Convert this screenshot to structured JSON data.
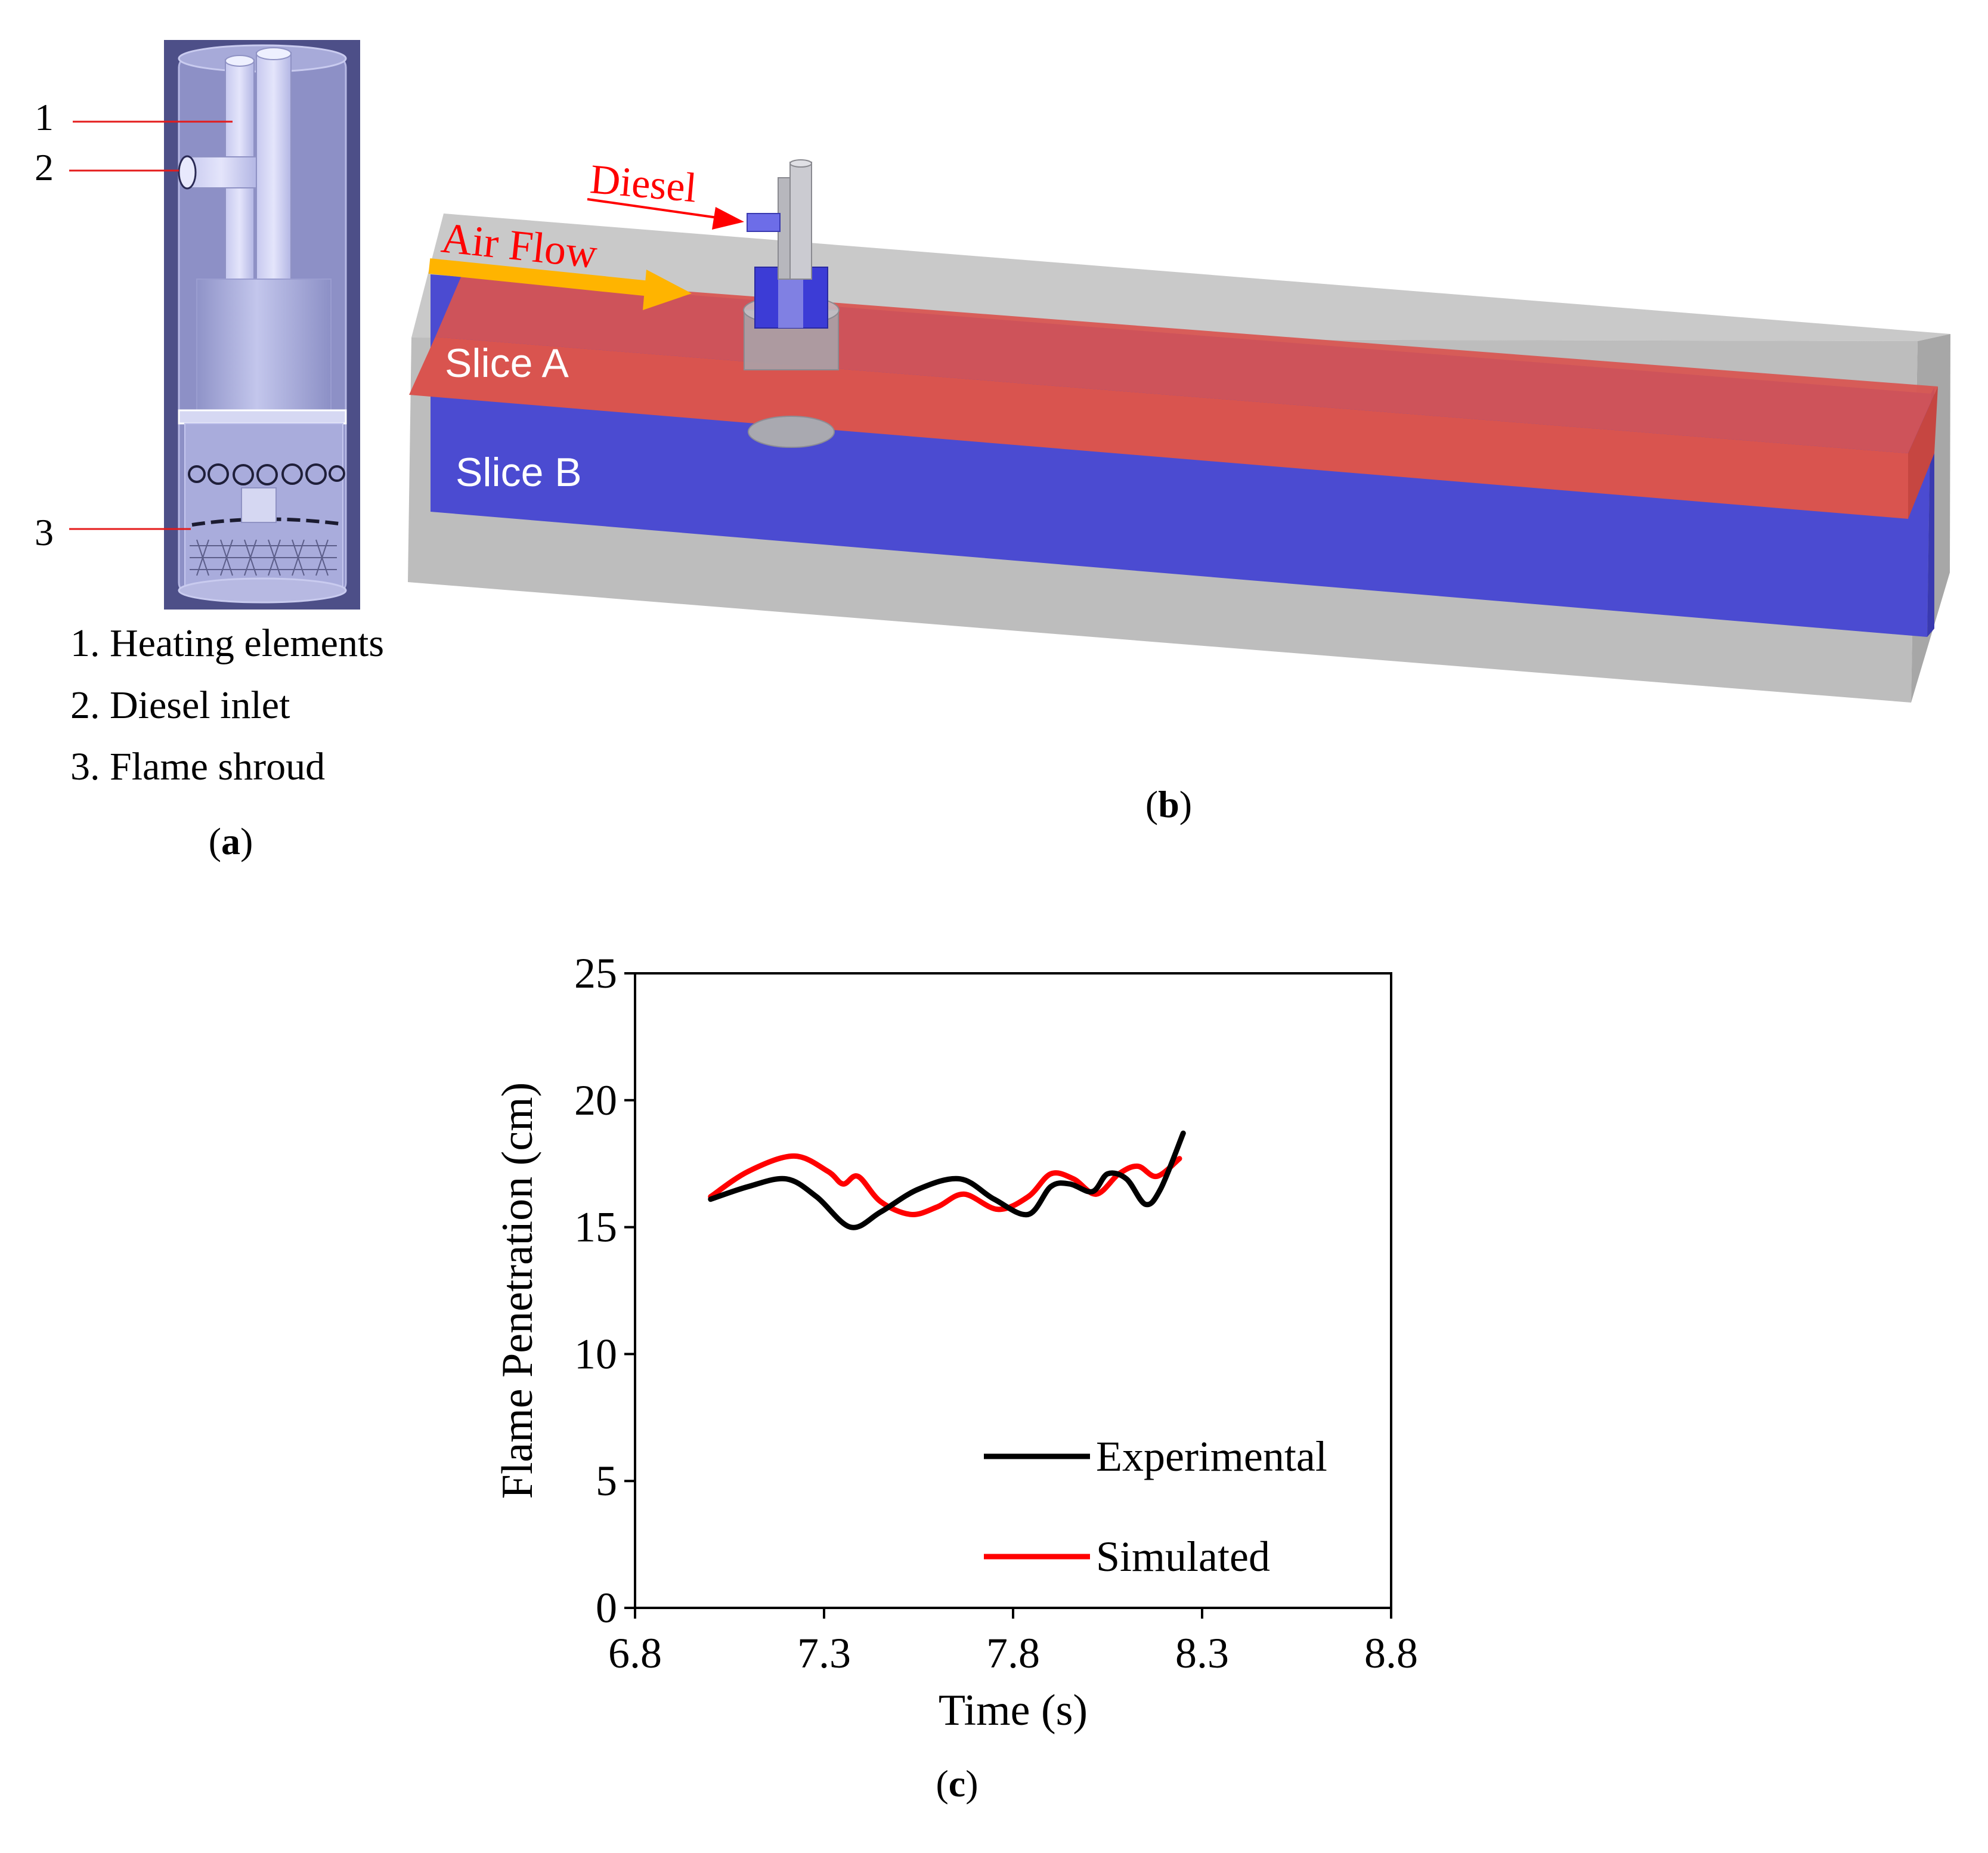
{
  "panel_a": {
    "callouts": [
      "1",
      "2",
      "3"
    ],
    "legend": [
      "1. Heating elements",
      "2. Diesel inlet",
      "3. Flame shroud"
    ],
    "caption_open": "(",
    "caption_letter": "a",
    "caption_close": ")"
  },
  "panel_b": {
    "diesel_label": "Diesel",
    "airflow_label": "Air Flow",
    "slice_a_label": "Slice A",
    "slice_b_label": "Slice B",
    "caption_open": "(",
    "caption_letter": "b",
    "caption_close": ")",
    "colors": {
      "slice_a": "#d9544f",
      "slice_b": "#4b4bd1",
      "duct": "#bebebe",
      "airflow_arrow": "#ffb400",
      "labels": "#ff0000"
    }
  },
  "panel_c": {
    "caption_open": "(",
    "caption_letter": "c",
    "caption_close": ")"
  },
  "chart_data": {
    "type": "line",
    "xlabel": "Time (s)",
    "ylabel": "Flame Penetration (cm)",
    "xlim": [
      6.8,
      8.8
    ],
    "ylim": [
      0,
      25
    ],
    "xticks": [
      6.8,
      7.3,
      7.8,
      8.3,
      8.8
    ],
    "yticks": [
      0,
      5,
      10,
      15,
      20,
      25
    ],
    "legend_position": "bottom-right",
    "grid": false,
    "series": [
      {
        "name": "Experimental",
        "color": "#000000",
        "x": [
          7.0,
          7.1,
          7.2,
          7.28,
          7.37,
          7.45,
          7.55,
          7.66,
          7.75,
          7.84,
          7.9,
          7.95,
          8.01,
          8.05,
          8.1,
          8.15,
          8.19,
          8.25
        ],
        "y": [
          16.1,
          16.6,
          16.9,
          16.2,
          15.0,
          15.6,
          16.5,
          16.9,
          16.1,
          15.5,
          16.6,
          16.7,
          16.4,
          17.1,
          16.9,
          15.9,
          16.5,
          18.7
        ]
      },
      {
        "name": "Simulated",
        "color": "#ff0000",
        "x": [
          7.0,
          7.1,
          7.22,
          7.31,
          7.35,
          7.39,
          7.45,
          7.53,
          7.6,
          7.67,
          7.76,
          7.84,
          7.9,
          7.96,
          8.02,
          8.08,
          8.13,
          8.18,
          8.24
        ],
        "y": [
          16.2,
          17.2,
          17.8,
          17.2,
          16.7,
          17.0,
          16.0,
          15.5,
          15.8,
          16.3,
          15.7,
          16.2,
          17.1,
          16.9,
          16.3,
          17.1,
          17.4,
          17.0,
          17.7
        ]
      }
    ]
  }
}
